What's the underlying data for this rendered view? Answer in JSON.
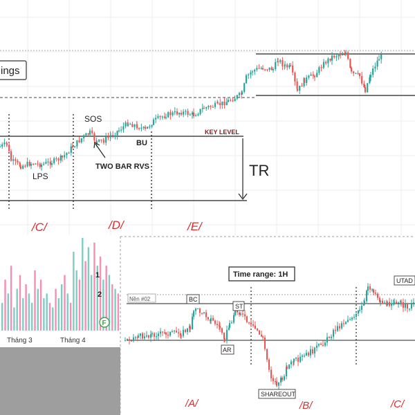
{
  "colors": {
    "up": "#26a69a",
    "down": "#ef5350",
    "phase": "#d32f2f",
    "grid": "#eeeeee",
    "level": "#222222",
    "dotted": "#222222",
    "gray_panel": "#9e9e9e",
    "vol_up": "#80cbc4",
    "vol_down": "#f48fb1"
  },
  "top_chart": {
    "truncated_box_text": "ings",
    "labels": {
      "sos": "SOS",
      "lps": "LPS",
      "two_bar": "TWO BAR RVS",
      "bu": "BU",
      "key_level": "KEY LEVEL",
      "tr": "TR"
    },
    "phases": [
      "/C/",
      "/D/",
      "/E/"
    ]
  },
  "volume_panel": {
    "month_labels": [
      "Tháng 3",
      "Tháng 4"
    ],
    "marks": [
      "1",
      "2"
    ],
    "badge": "F",
    "bars": [
      30,
      55,
      40,
      70,
      25,
      45,
      60,
      35,
      50,
      40,
      30,
      65,
      45,
      55,
      35,
      40,
      30,
      25,
      45,
      35,
      50,
      60,
      40,
      30,
      85,
      65,
      55,
      100,
      75,
      90,
      60,
      95,
      70,
      80,
      55,
      70,
      60,
      50,
      45,
      40
    ],
    "bar_up": [
      1,
      0,
      1,
      0,
      1,
      1,
      0,
      1,
      0,
      1,
      1,
      0,
      1,
      0,
      1,
      1,
      0,
      1,
      0,
      1,
      1,
      0,
      1,
      0,
      1,
      1,
      0,
      1,
      0,
      1,
      1,
      0,
      1,
      0,
      1,
      0,
      1,
      0,
      1,
      0
    ]
  },
  "bottom_chart": {
    "title": "Time range: 1H",
    "left_label": "Nền #02",
    "labels": {
      "bc": "BC",
      "st": "ST",
      "ar": "AR",
      "shareout": "SHAREOUT",
      "utad": "UTAD"
    },
    "phases": [
      "/A/",
      "/B/",
      "/C/"
    ]
  }
}
